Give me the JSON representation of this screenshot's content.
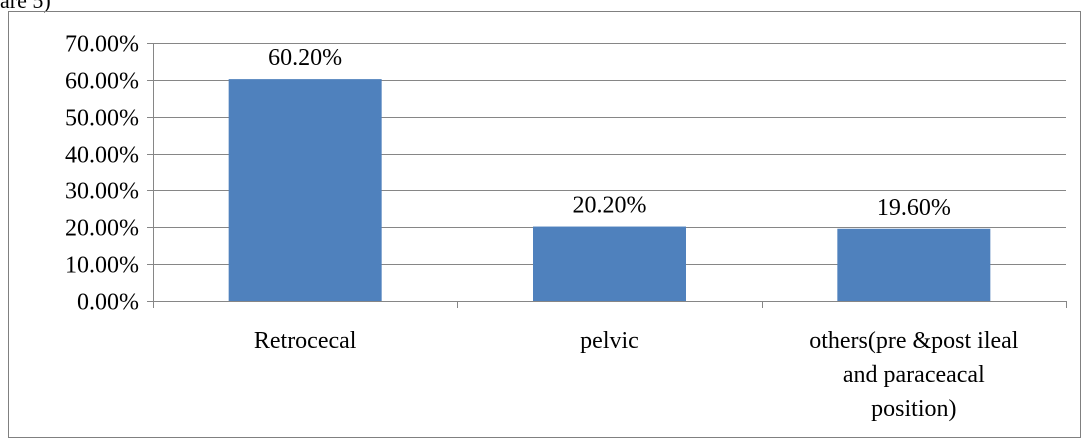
{
  "caption_fragment": "are 5)",
  "chart_data": {
    "type": "bar",
    "categories": [
      "Retrocecal",
      "pelvic",
      "others(pre &post ileal and paraceacal position)"
    ],
    "category_lines": [
      [
        "Retrocecal"
      ],
      [
        "pelvic"
      ],
      [
        "others(pre &post ileal",
        "and paraceacal",
        "position)"
      ]
    ],
    "values": [
      60.2,
      20.2,
      19.6
    ],
    "data_labels": [
      "60.20%",
      "20.20%",
      "19.60%"
    ],
    "ylim": [
      0,
      70
    ],
    "yticks": [
      0,
      10,
      20,
      30,
      40,
      50,
      60,
      70
    ],
    "ytick_labels": [
      "0.00%",
      "10.00%",
      "20.00%",
      "30.00%",
      "40.00%",
      "50.00%",
      "60.00%",
      "70.00%"
    ],
    "title": "",
    "xlabel": "",
    "ylabel": "",
    "grid": true,
    "legend": "none",
    "bar_color": "#4f81bd",
    "grid_color": "#868686",
    "axis_color": "#868686"
  }
}
